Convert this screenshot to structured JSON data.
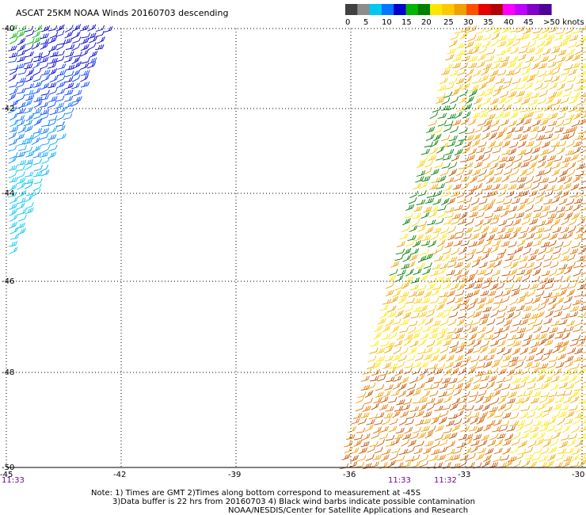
{
  "title": "ASCAT 25KM NOAA Winds 20160703 descending",
  "legend": {
    "labels": [
      "0",
      "5",
      "10",
      "15",
      "20",
      "25",
      "30",
      "35",
      "40",
      "45",
      ">50 knots"
    ],
    "colors": [
      "#404040",
      "#8c8c8c",
      "#00c8f0",
      "#0078ff",
      "#0000d0",
      "#00b400",
      "#008000",
      "#ffe600",
      "#ffc800",
      "#f0a000",
      "#ff5000",
      "#e60000",
      "#b40000",
      "#ff00ff",
      "#c000ff",
      "#8000c8",
      "#500096"
    ]
  },
  "map": {
    "lat_labels": [
      "-40",
      "-42",
      "-44",
      "-46",
      "-48",
      "-50"
    ],
    "lon_labels": [
      "-45",
      "-42",
      "-39",
      "-36",
      "-33",
      "-30"
    ],
    "time_labels": [
      "11:33",
      "11:33",
      "11:32"
    ],
    "swath_colors": {
      "cold": [
        "#0000d0",
        "#0000d0",
        "#0040ff",
        "#0078ff",
        "#00a0ff",
        "#00c8f0",
        "#00c8f0"
      ],
      "warm": [
        "#ffe600",
        "#ffc800",
        "#f0a000",
        "#e07000",
        "#c05000"
      ],
      "green": "#008000",
      "green_light": "#00b400"
    }
  },
  "notes": {
    "line1": "Note: 1) Times are GMT 2)Times along bottom correspond to measurement at -45S",
    "line2": "3)Data buffer is 22 hrs from 20160703 4) Black wind barbs indicate possible contamination",
    "line3": "NOAA/NESDIS/Center for Satellite Applications and Research"
  }
}
